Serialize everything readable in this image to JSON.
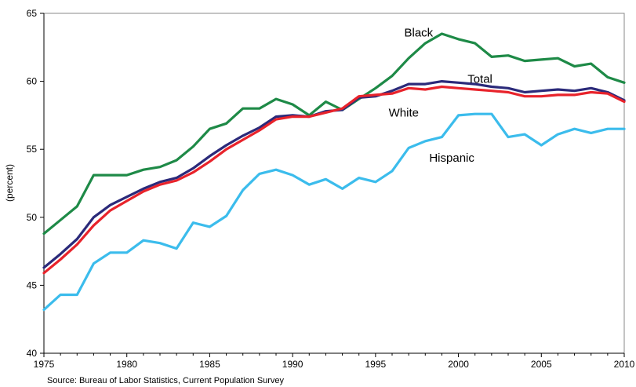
{
  "chart_data": {
    "type": "line",
    "ylabel": "(percent)",
    "xlabel": "",
    "title": "",
    "source": "Source: Bureau of Labor Statistics, Current Population Survey",
    "xlim": [
      1975,
      2010
    ],
    "ylim": [
      40,
      65
    ],
    "xticks": [
      1975,
      1980,
      1985,
      1990,
      1995,
      2000,
      2005,
      2010
    ],
    "yticks": [
      40,
      45,
      50,
      55,
      60,
      65
    ],
    "grid": false,
    "x": [
      1975,
      1976,
      1977,
      1978,
      1979,
      1980,
      1981,
      1982,
      1983,
      1984,
      1985,
      1986,
      1987,
      1988,
      1989,
      1990,
      1991,
      1992,
      1993,
      1994,
      1995,
      1996,
      1997,
      1998,
      1999,
      2000,
      2001,
      2002,
      2003,
      2004,
      2005,
      2006,
      2007,
      2008,
      2009,
      2010
    ],
    "series": [
      {
        "name": "Black",
        "color": "#1e8a47",
        "label_x": 1997.6,
        "label_y": 63.3,
        "values": [
          48.8,
          49.8,
          50.8,
          53.1,
          53.1,
          53.1,
          53.5,
          53.7,
          54.2,
          55.2,
          56.5,
          56.9,
          58.0,
          58.0,
          58.7,
          58.3,
          57.5,
          58.5,
          57.9,
          58.7,
          59.5,
          60.4,
          61.7,
          62.8,
          63.5,
          63.1,
          62.8,
          61.8,
          61.9,
          61.5,
          61.6,
          61.7,
          61.1,
          61.3,
          60.3,
          59.9
        ]
      },
      {
        "name": "Total",
        "color": "#2b2a7a",
        "label_x": 2001.3,
        "label_y": 59.9,
        "values": [
          46.3,
          47.3,
          48.4,
          50.0,
          50.9,
          51.5,
          52.1,
          52.6,
          52.9,
          53.6,
          54.5,
          55.3,
          56.0,
          56.6,
          57.4,
          57.5,
          57.4,
          57.8,
          57.9,
          58.8,
          58.9,
          59.3,
          59.8,
          59.8,
          60.0,
          59.9,
          59.8,
          59.6,
          59.5,
          59.2,
          59.3,
          59.4,
          59.3,
          59.5,
          59.2,
          58.6
        ]
      },
      {
        "name": "White",
        "color": "#e8232b",
        "label_x": 1996.7,
        "label_y": 57.4,
        "values": [
          45.9,
          46.9,
          48.0,
          49.4,
          50.5,
          51.2,
          51.9,
          52.4,
          52.7,
          53.3,
          54.1,
          55.0,
          55.7,
          56.4,
          57.2,
          57.4,
          57.4,
          57.7,
          58.0,
          58.9,
          59.0,
          59.1,
          59.5,
          59.4,
          59.6,
          59.5,
          59.4,
          59.3,
          59.2,
          58.9,
          58.9,
          59.0,
          59.0,
          59.2,
          59.1,
          58.5
        ]
      },
      {
        "name": "Hispanic",
        "color": "#3bbcec",
        "label_x": 1999.6,
        "label_y": 54.1,
        "values": [
          43.2,
          44.3,
          44.3,
          46.6,
          47.4,
          47.4,
          48.3,
          48.1,
          47.7,
          49.6,
          49.3,
          50.1,
          52.0,
          53.2,
          53.5,
          53.1,
          52.4,
          52.8,
          52.1,
          52.9,
          52.6,
          53.4,
          55.1,
          55.6,
          55.9,
          57.5,
          57.6,
          57.6,
          55.9,
          56.1,
          55.3,
          56.1,
          56.5,
          56.2,
          56.5,
          56.5
        ]
      }
    ]
  }
}
